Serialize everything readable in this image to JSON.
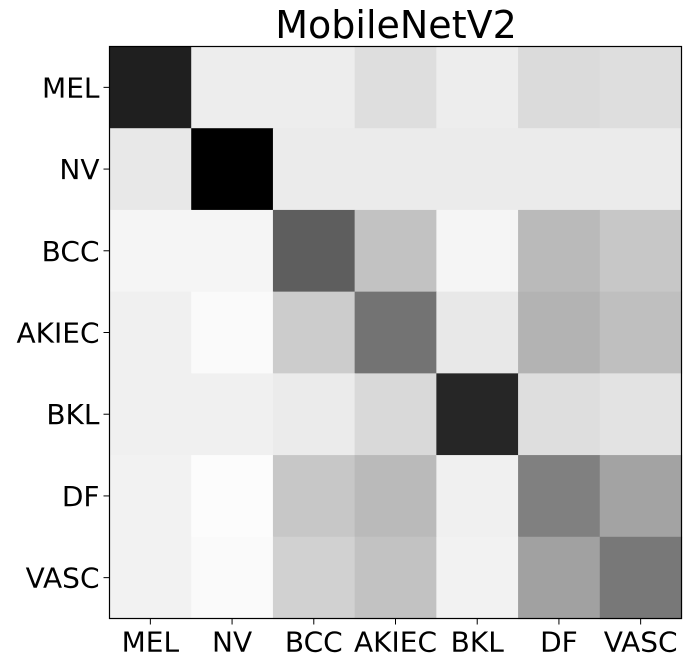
{
  "chart_data": {
    "type": "heatmap",
    "title": "MobileNetV2",
    "xlabel": "",
    "ylabel": "",
    "rows": [
      "MEL",
      "NV",
      "BCC",
      "AKIEC",
      "BKL",
      "DF",
      "VASC"
    ],
    "columns": [
      "MEL",
      "NV",
      "BCC",
      "AKIEC",
      "BKL",
      "DF",
      "VASC"
    ],
    "colormap": "gray_r",
    "value_range": [
      0,
      1
    ],
    "values": [
      [
        0.88,
        0.07,
        0.07,
        0.13,
        0.07,
        0.14,
        0.13
      ],
      [
        0.09,
        1.0,
        0.08,
        0.08,
        0.08,
        0.08,
        0.08
      ],
      [
        0.04,
        0.04,
        0.63,
        0.24,
        0.04,
        0.27,
        0.22
      ],
      [
        0.06,
        0.02,
        0.2,
        0.55,
        0.09,
        0.3,
        0.25
      ],
      [
        0.06,
        0.06,
        0.08,
        0.15,
        0.85,
        0.13,
        0.11
      ],
      [
        0.05,
        0.01,
        0.22,
        0.27,
        0.06,
        0.5,
        0.36
      ],
      [
        0.05,
        0.02,
        0.18,
        0.24,
        0.05,
        0.37,
        0.53
      ]
    ],
    "grid": false,
    "legend": "none"
  }
}
